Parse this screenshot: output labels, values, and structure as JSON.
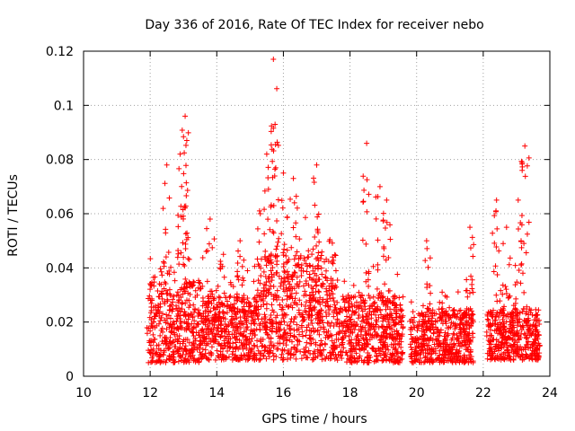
{
  "chart_data": {
    "type": "scatter",
    "title": "Day 336 of 2016, Rate Of TEC Index for receiver nebo",
    "xlabel": "GPS time / hours",
    "ylabel": "ROTI / TECUs",
    "xlim": [
      10,
      24
    ],
    "ylim": [
      0,
      0.12
    ],
    "x_ticks": [
      "10",
      "12",
      "14",
      "16",
      "18",
      "20",
      "22",
      "24"
    ],
    "y_ticks": [
      "0",
      "0.02",
      "0.04",
      "0.06",
      "0.08",
      "0.1",
      "0.12"
    ],
    "grid": true,
    "marker": "+",
    "color": "#ff0000",
    "segments": [
      {
        "x": [
          11.9,
          13.6
        ],
        "base": [
          0.005,
          0.035
        ],
        "peaks": [
          [
            12.5,
            0.078
          ],
          [
            12.9,
            0.082
          ],
          [
            13.05,
            0.096
          ],
          [
            13.1,
            0.087
          ]
        ]
      },
      {
        "x": [
          13.6,
          15.2
        ],
        "base": [
          0.006,
          0.03
        ],
        "peaks": [
          [
            13.8,
            0.058
          ],
          [
            14.2,
            0.045
          ],
          [
            14.7,
            0.05
          ]
        ]
      },
      {
        "x": [
          15.2,
          17.6
        ],
        "base": [
          0.006,
          0.045
        ],
        "peaks": [
          [
            15.5,
            0.082
          ],
          [
            15.7,
            0.117
          ],
          [
            15.75,
            0.093
          ],
          [
            16.0,
            0.075
          ],
          [
            16.3,
            0.073
          ],
          [
            17.0,
            0.078
          ]
        ]
      },
      {
        "x": [
          17.6,
          19.6
        ],
        "base": [
          0.005,
          0.03
        ],
        "peaks": [
          [
            18.5,
            0.086
          ],
          [
            18.9,
            0.07
          ],
          [
            19.1,
            0.065
          ]
        ]
      },
      {
        "x": [
          19.8,
          21.7
        ],
        "base": [
          0.005,
          0.025
        ],
        "peaks": [
          [
            20.3,
            0.05
          ],
          [
            21.6,
            0.055
          ]
        ]
      },
      {
        "x": [
          22.1,
          23.7
        ],
        "base": [
          0.006,
          0.025
        ],
        "peaks": [
          [
            22.4,
            0.065
          ],
          [
            22.7,
            0.055
          ],
          [
            23.05,
            0.065
          ],
          [
            23.25,
            0.085
          ]
        ]
      }
    ]
  }
}
